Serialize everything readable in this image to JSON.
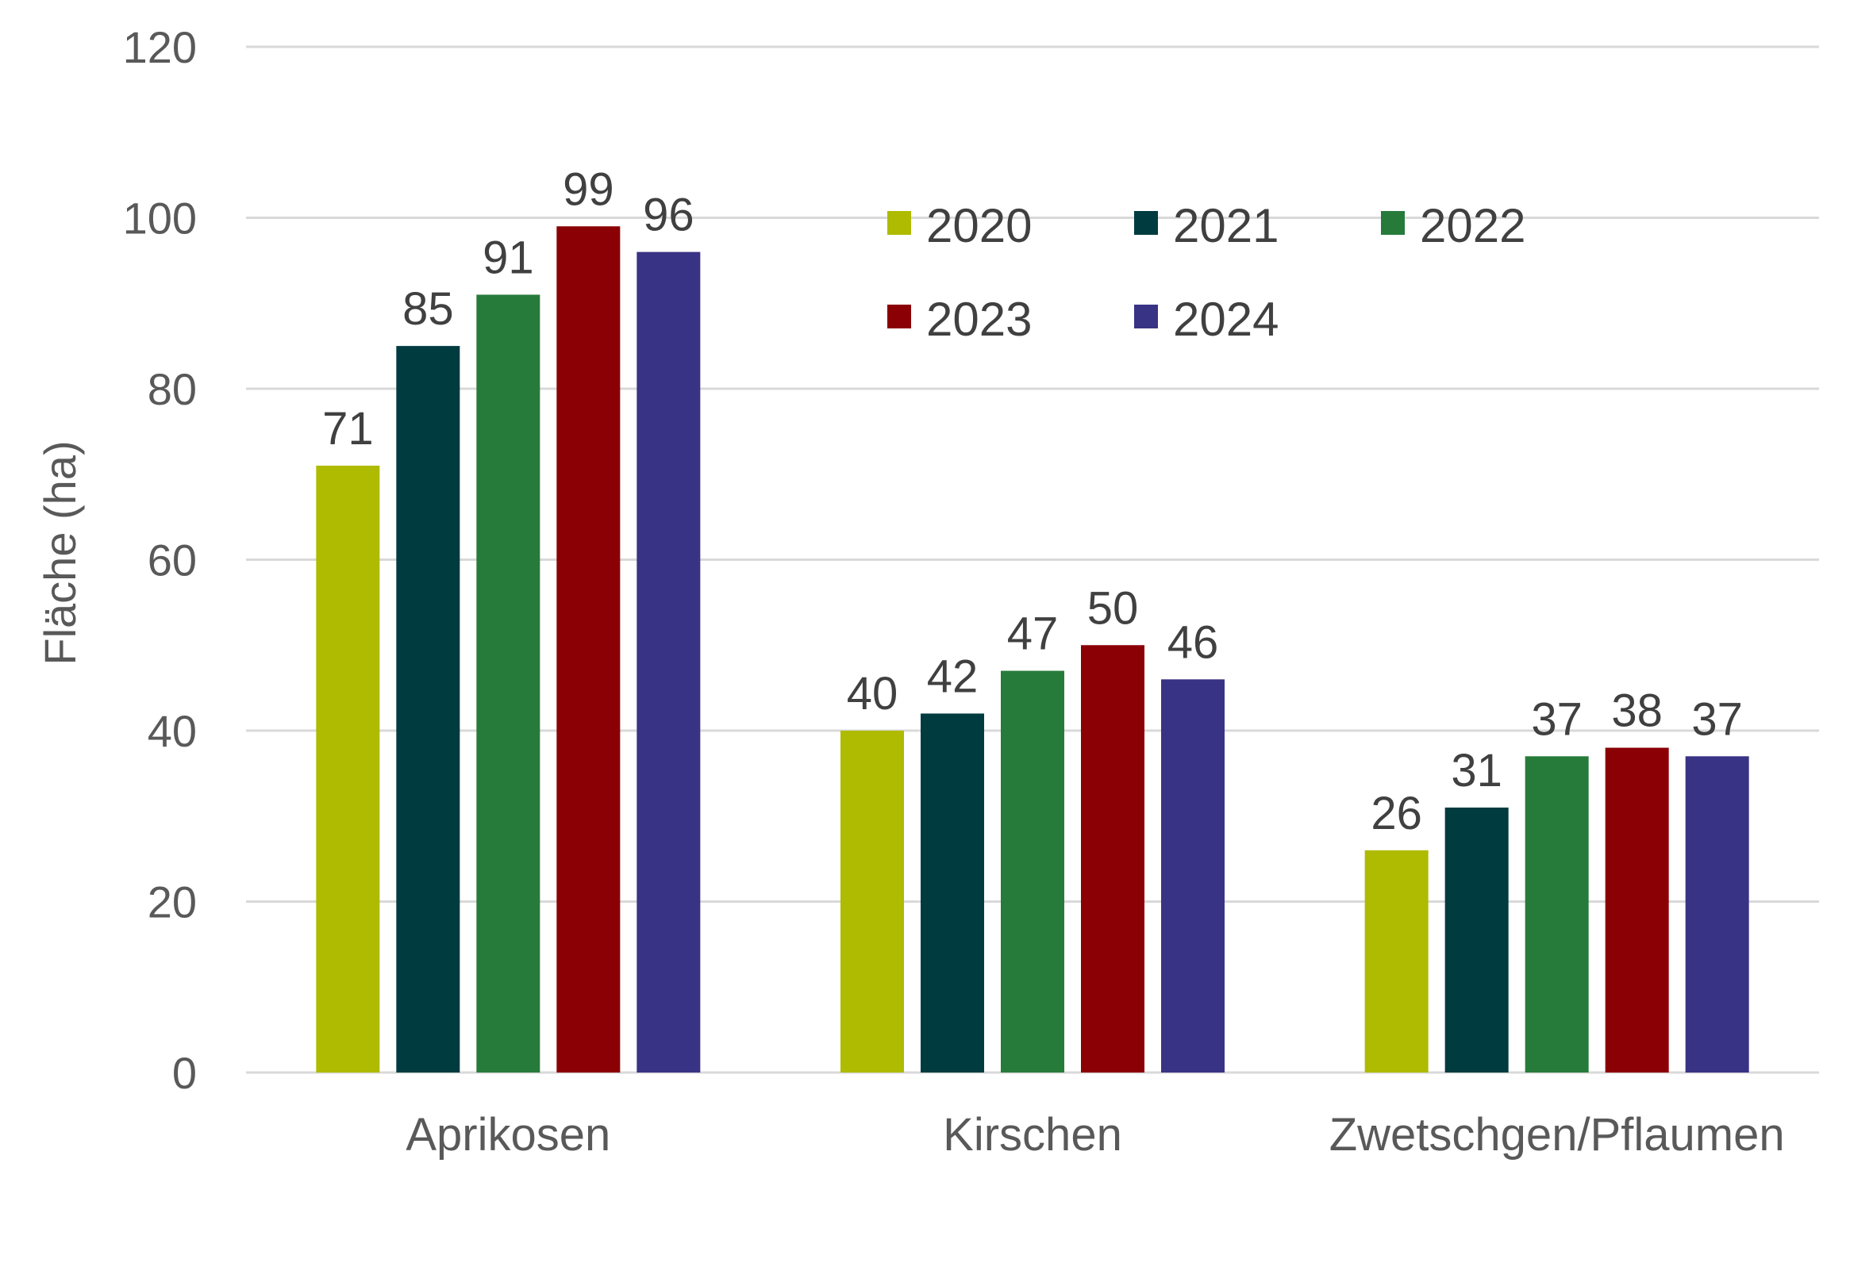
{
  "chart_data": {
    "type": "bar",
    "title": "",
    "xlabel": "",
    "ylabel": "Fläche (ha)",
    "ylim": [
      0,
      120
    ],
    "yticks": [
      0,
      20,
      40,
      60,
      80,
      100,
      120
    ],
    "grid": true,
    "legend_position": "top-right",
    "categories": [
      "Aprikosen",
      "Kirschen",
      "Zwetschgen/Pflaumen"
    ],
    "series": [
      {
        "name": "2020",
        "color": "#AEBB00",
        "values": [
          71,
          40,
          26
        ]
      },
      {
        "name": "2021",
        "color": "#003B40",
        "values": [
          85,
          42,
          31
        ]
      },
      {
        "name": "2022",
        "color": "#277B3A",
        "values": [
          91,
          47,
          37
        ]
      },
      {
        "name": "2023",
        "color": "#8B0005",
        "values": [
          99,
          50,
          38
        ]
      },
      {
        "name": "2024",
        "color": "#393385",
        "values": [
          96,
          46,
          37
        ]
      }
    ]
  }
}
